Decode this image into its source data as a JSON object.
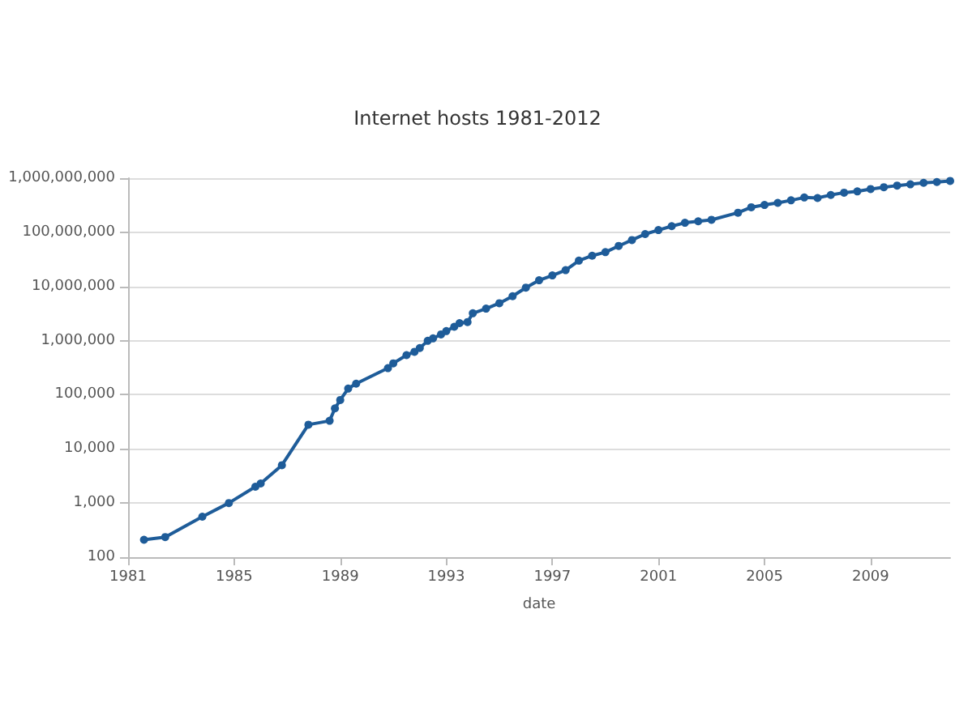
{
  "chart_data": {
    "type": "line",
    "title": "Internet hosts 1981-2012",
    "xlabel": "date",
    "x": [
      1981.6,
      1982.4,
      1983.8,
      1984.8,
      1985.8,
      1986.0,
      1986.8,
      1987.8,
      1988.6,
      1988.8,
      1989.0,
      1989.3,
      1989.6,
      1990.8,
      1991.0,
      1991.5,
      1991.8,
      1992.0,
      1992.3,
      1992.5,
      1992.8,
      1993.0,
      1993.3,
      1993.5,
      1993.8,
      1994.0,
      1994.5,
      1995.0,
      1995.5,
      1996.0,
      1996.5,
      1997.0,
      1997.5,
      1998.0,
      1998.5,
      1999.0,
      1999.5,
      2000.0,
      2000.5,
      2001.0,
      2001.5,
      2002.0,
      2002.5,
      2003.0,
      2004.0,
      2004.5,
      2005.0,
      2005.5,
      2006.0,
      2006.5,
      2007.0,
      2007.5,
      2008.0,
      2008.5,
      2009.0,
      2009.5,
      2010.0,
      2010.5,
      2011.0,
      2011.5,
      2012.0
    ],
    "series": [
      {
        "color": "#1e5c99",
        "values": [
          210,
          235,
          560,
          1000,
          2000,
          2300,
          5000,
          28000,
          33000,
          56000,
          80000,
          130000,
          160000,
          310000,
          380000,
          540000,
          620000,
          730000,
          990000,
          1100000,
          1300000,
          1500000,
          1800000,
          2100000,
          2200000,
          3200000,
          3900000,
          4900000,
          6600000,
          9500000,
          13000000,
          16000000,
          20000000,
          30000000,
          37000000,
          43000000,
          56000000,
          72000000,
          93000000,
          110000000,
          130000000,
          150000000,
          160000000,
          170000000,
          230000000,
          290000000,
          320000000,
          350000000,
          390000000,
          440000000,
          430000000,
          490000000,
          540000000,
          570000000,
          630000000,
          680000000,
          730000000,
          770000000,
          820000000,
          850000000,
          890000000
        ]
      }
    ],
    "xlim": [
      1981,
      2012
    ],
    "xticks": [
      1981,
      1985,
      1989,
      1993,
      1997,
      2001,
      2005,
      2009
    ],
    "ylim": [
      100,
      1000000000
    ],
    "log": "y",
    "yticks": [
      {
        "value": 100,
        "label": "100"
      },
      {
        "value": 1000,
        "label": "1,000"
      },
      {
        "value": 10000,
        "label": "10,000"
      },
      {
        "value": 100000,
        "label": "100,000"
      },
      {
        "value": 1000000,
        "label": "1,000,000"
      },
      {
        "value": 10000000,
        "label": "10,000,000"
      },
      {
        "value": 100000000,
        "label": "100,000,000"
      },
      {
        "value": 1000000000,
        "label": "1,000,000,000"
      }
    ],
    "grid": "y",
    "marker": "circle",
    "line_style": "solid"
  }
}
